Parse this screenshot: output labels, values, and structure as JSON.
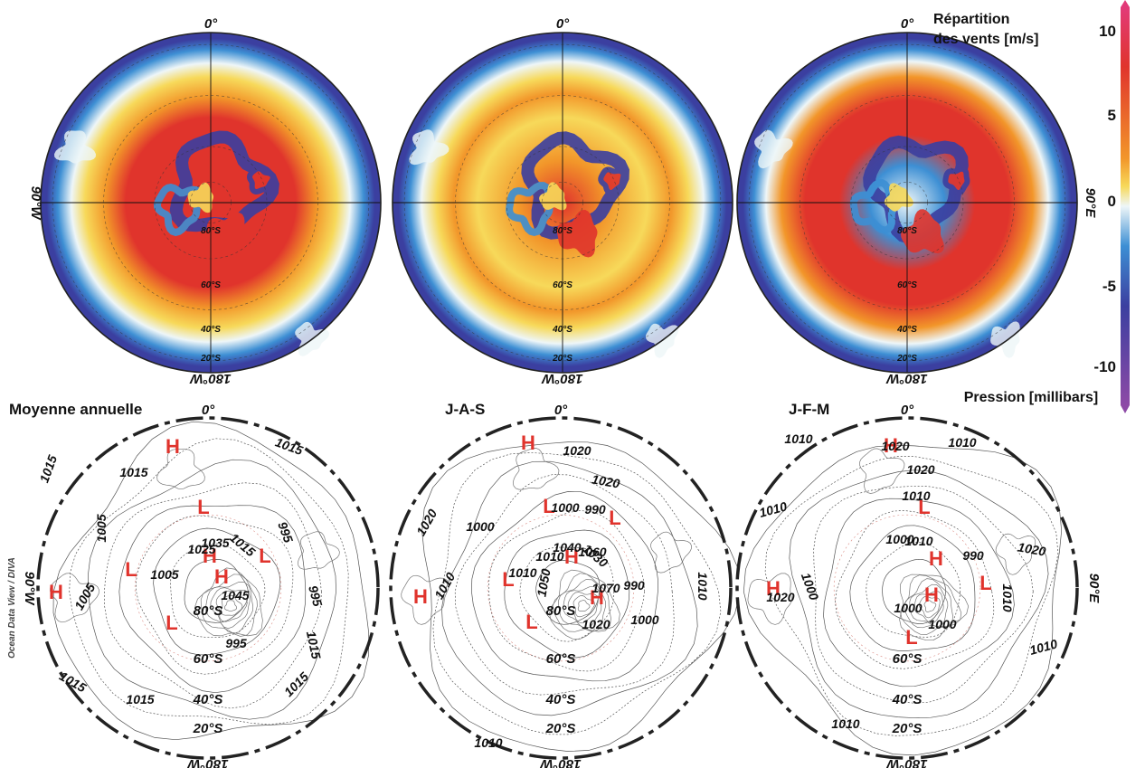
{
  "figure": {
    "colorbar": {
      "title_line1": "Répartition",
      "title_line2": "des vents [m/s]",
      "ticks": [
        "10",
        "5",
        "0",
        "-5",
        "-10"
      ],
      "colors": [
        "#8d4aa6",
        "#3b3fa0",
        "#3d8fd4",
        "#eef6f8",
        "#f7d95a",
        "#f2962a",
        "#e0342c",
        "#e23a78"
      ]
    },
    "pressure_label": "Pression [millibars]",
    "credit": "Ocean Data View / DIVA",
    "wind_maps": [
      {
        "lon_top": "0°",
        "lon_bottom": "180°W",
        "lon_left": "90°W",
        "lon_right": "",
        "lat_labels": [
          "80°S",
          "60°S",
          "40°S",
          "20°S"
        ]
      },
      {
        "lon_top": "0°",
        "lon_bottom": "180°W",
        "lon_left": "",
        "lon_right": "",
        "lat_labels": [
          "80°S",
          "60°S",
          "40°S",
          "20°S"
        ]
      },
      {
        "lon_top": "0°",
        "lon_bottom": "180°W",
        "lon_left": "",
        "lon_right": "90°E",
        "lat_labels": [
          "80°S",
          "60°S",
          "40°S",
          "20°S"
        ]
      }
    ],
    "pressure_maps": [
      {
        "title": "Moyenne annuelle",
        "lon_top": "0°",
        "lon_bottom": "180°W",
        "lon_left": "90°W",
        "lon_right": "",
        "lat_labels": [
          "80°S",
          "60°S",
          "40°S",
          "20°S"
        ],
        "centers": [
          "H",
          "L",
          "L",
          "H",
          "H",
          "H",
          "L",
          "L"
        ],
        "isobars": [
          "1015",
          "1015",
          "1015",
          "995",
          "1005",
          "995",
          "1005",
          "1015",
          "1025",
          "1035",
          "1015",
          "1005",
          "1045",
          "995",
          "1015",
          "1015",
          "1015"
        ]
      },
      {
        "title": "J-A-S",
        "lon_top": "0°",
        "lon_bottom": "180°W",
        "lon_left": "",
        "lon_right": "",
        "lat_labels": [
          "80°S",
          "60°S",
          "40°S",
          "20°S"
        ],
        "centers": [
          "H",
          "L",
          "L",
          "H",
          "H",
          "L",
          "H",
          "L"
        ],
        "isobars": [
          "1020",
          "1020",
          "1000",
          "990",
          "1020",
          "1000",
          "1010",
          "1030",
          "1040",
          "1060",
          "1010",
          "1010",
          "1050",
          "1070",
          "990",
          "1000",
          "1020",
          "1010",
          "1010"
        ]
      },
      {
        "title": "J-F-M",
        "lon_top": "0°",
        "lon_bottom": "180°W",
        "lon_left": "",
        "lon_right": "90°E",
        "lat_labels": [
          "60°S",
          "40°S",
          "20°S"
        ],
        "centers": [
          "H",
          "L",
          "H",
          "H",
          "H",
          "L",
          "L"
        ],
        "isobars": [
          "1010",
          "1020",
          "1010",
          "1010",
          "1020",
          "1020",
          "1010",
          "990",
          "1020",
          "1000",
          "1000",
          "1010",
          "1000",
          "1000",
          "1010",
          "1010",
          "1010"
        ]
      }
    ]
  }
}
